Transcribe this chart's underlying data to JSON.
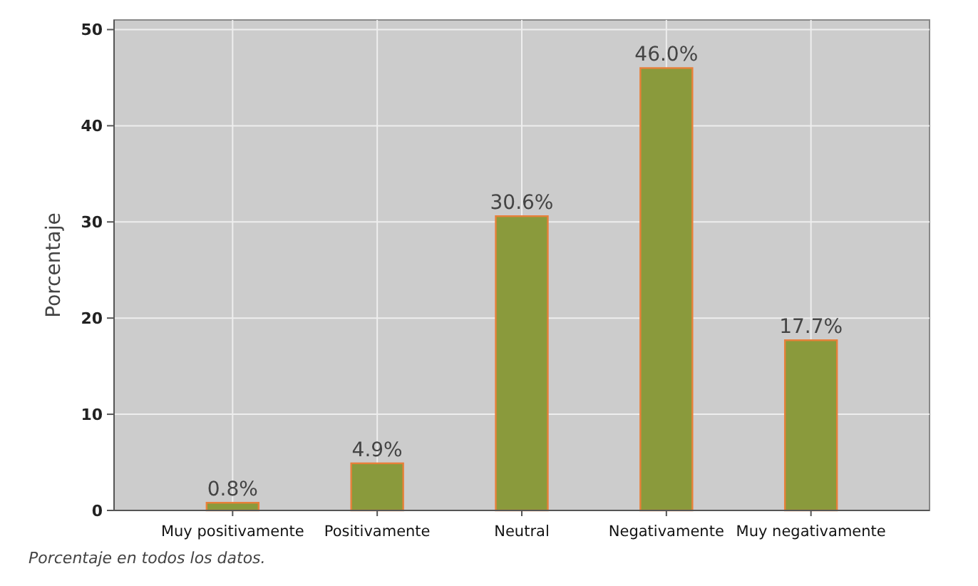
{
  "chart_data": {
    "type": "bar",
    "ylabel": "Porcentaje",
    "categories": [
      "Muy positivamente",
      "Positivamente",
      "Neutral",
      "Negativamente",
      "Muy negativamente"
    ],
    "values": [
      0.8,
      4.9,
      30.6,
      46.0,
      17.7
    ],
    "value_labels": [
      "0.8%",
      "4.9%",
      "30.6%",
      "46.0%",
      "17.7%"
    ],
    "color": "#8a9a3c",
    "ylim": [
      0,
      51
    ],
    "yticks": [
      0,
      10,
      20,
      30,
      40,
      50
    ],
    "grid": true,
    "annotations": [
      "Porcentaje en todos los datos."
    ]
  }
}
